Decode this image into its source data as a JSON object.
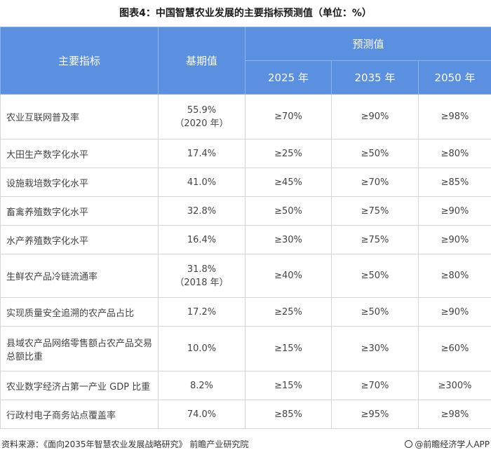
{
  "title": "图表4：中国智慧农业发展的主要指标预测值（单位：%）",
  "table": {
    "headers": {
      "indicator": "主要指标",
      "base": "基期值",
      "forecast": "预测值",
      "years": [
        "2025 年",
        "2035 年",
        "2050 年"
      ]
    },
    "rows": [
      {
        "name": "农业互联网普及率",
        "base": "55.9%",
        "base_note": "（2020 年）",
        "y2025": "≥70%",
        "y2035": "≥90%",
        "y2050": "≥98%"
      },
      {
        "name": "大田生产数字化水平",
        "base": "17.4%",
        "base_note": "",
        "y2025": "≥25%",
        "y2035": "≥50%",
        "y2050": "≥80%"
      },
      {
        "name": "设施栽培数字化水平",
        "base": "41.0%",
        "base_note": "",
        "y2025": "≥45%",
        "y2035": "≥70%",
        "y2050": "≥85%"
      },
      {
        "name": "畜禽养殖数字化水平",
        "base": "32.8%",
        "base_note": "",
        "y2025": "≥50%",
        "y2035": "≥75%",
        "y2050": "≥90%"
      },
      {
        "name": "水产养殖数字化水平",
        "base": "16.4%",
        "base_note": "",
        "y2025": "≥30%",
        "y2035": "≥75%",
        "y2050": "≥90%"
      },
      {
        "name": "生鲜农产品冷链流通率",
        "base": "31.8%",
        "base_note": "（2018 年）",
        "y2025": "≥40%",
        "y2035": "≥50%",
        "y2050": "≥80%"
      },
      {
        "name": "实现质量安全追溯的农产品占比",
        "base": "17.2%",
        "base_note": "",
        "y2025": "≥25%",
        "y2035": "≥50%",
        "y2050": "≥90%"
      },
      {
        "name": "县域农产品网络零售额占农产品交易总额比重",
        "base": "10.0%",
        "base_note": "",
        "y2025": "≥15%",
        "y2035": "≥30%",
        "y2050": "≥60%"
      },
      {
        "name": "农业数字经济占第一产业 GDP 比重",
        "base": "8.2%",
        "base_note": "",
        "y2025": "≥15%",
        "y2035": "≥70%",
        "y2050": "≥300%"
      },
      {
        "name": "行政村电子商务站点覆盖率",
        "base": "74.0%",
        "base_note": "",
        "y2025": "≥85%",
        "y2035": "≥95%",
        "y2050": "≥98%"
      }
    ]
  },
  "source": {
    "left": "资料来源：《面向2035年智慧农业发展战略研究》 前瞻产业研究院",
    "right": "@前瞻经济学人APP"
  }
}
